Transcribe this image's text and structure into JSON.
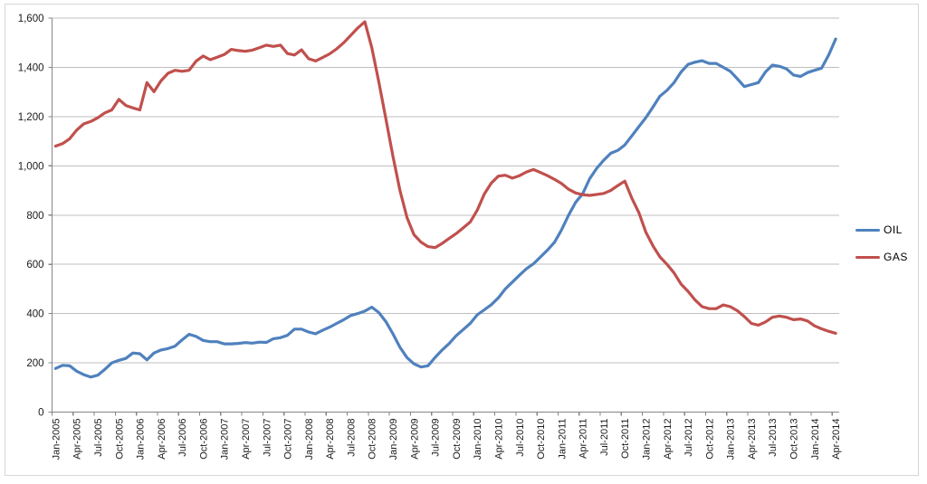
{
  "chart_data": {
    "type": "line",
    "title": "",
    "xlabel": "",
    "ylabel": "",
    "x_start": "Jan-2005",
    "x_end": "Apr-2014",
    "x_frequency": "monthly",
    "x_tick_labels": [
      "Jan-2005",
      "Apr-2005",
      "Jul-2005",
      "Oct-2005",
      "Jan-2006",
      "Apr-2006",
      "Jul-2006",
      "Oct-2006",
      "Jan-2007",
      "Apr-2007",
      "Jul-2007",
      "Oct-2007",
      "Jan-2008",
      "Apr-2008",
      "Jul-2008",
      "Oct-2008",
      "Jan-2009",
      "Apr-2009",
      "Jul-2009",
      "Oct-2009",
      "Jan-2010",
      "Apr-2010",
      "Jul-2010",
      "Oct-2010",
      "Jan-2011",
      "Apr-2011",
      "Jul-2011",
      "Oct-2011",
      "Jan-2012",
      "Apr-2012",
      "Jul-2012",
      "Oct-2012",
      "Jan-2013",
      "Apr-2013",
      "Jul-2013",
      "Oct-2013",
      "Jan-2014",
      "Apr-2014"
    ],
    "y_tick_labels": [
      "0",
      "200",
      "400",
      "600",
      "800",
      "1,000",
      "1,200",
      "1,400",
      "1,600"
    ],
    "ylim": [
      0,
      1600
    ],
    "y_step": 200,
    "grid": "horizontal",
    "legend_position": "right",
    "series": [
      {
        "name": "OIL",
        "color": "#4f81bd",
        "values": [
          177,
          190,
          188,
          166,
          152,
          142,
          150,
          173,
          200,
          210,
          218,
          240,
          237,
          212,
          240,
          252,
          258,
          268,
          293,
          316,
          307,
          291,
          286,
          286,
          277,
          277,
          279,
          282,
          280,
          284,
          283,
          298,
          302,
          312,
          337,
          337,
          325,
          318,
          332,
          345,
          360,
          375,
          392,
          400,
          410,
          426,
          404,
          367,
          318,
          263,
          221,
          196,
          183,
          188,
          222,
          252,
          278,
          310,
          335,
          360,
          395,
          415,
          436,
          464,
          500,
          528,
          556,
          582,
          602,
          630,
          658,
          690,
          740,
          800,
          852,
          886,
          948,
          990,
          1023,
          1051,
          1063,
          1085,
          1122,
          1159,
          1196,
          1239,
          1283,
          1307,
          1338,
          1381,
          1412,
          1421,
          1427,
          1416,
          1416,
          1400,
          1384,
          1354,
          1322,
          1330,
          1338,
          1381,
          1409,
          1404,
          1394,
          1369,
          1363,
          1379,
          1388,
          1397,
          1450,
          1515
        ]
      },
      {
        "name": "GAS",
        "color": "#c0504d",
        "values": [
          1080,
          1090,
          1110,
          1145,
          1170,
          1180,
          1195,
          1215,
          1227,
          1270,
          1245,
          1235,
          1227,
          1338,
          1301,
          1345,
          1376,
          1388,
          1384,
          1388,
          1425,
          1446,
          1431,
          1441,
          1452,
          1473,
          1468,
          1465,
          1470,
          1480,
          1490,
          1485,
          1490,
          1456,
          1450,
          1471,
          1435,
          1426,
          1440,
          1455,
          1475,
          1500,
          1530,
          1560,
          1585,
          1480,
          1340,
          1190,
          1040,
          900,
          790,
          720,
          690,
          672,
          668,
          685,
          705,
          725,
          748,
          772,
          820,
          885,
          930,
          958,
          962,
          950,
          960,
          975,
          985,
          973,
          960,
          945,
          928,
          905,
          890,
          883,
          880,
          884,
          888,
          900,
          920,
          938,
          868,
          810,
          730,
          675,
          630,
          600,
          565,
          520,
          490,
          455,
          428,
          420,
          420,
          435,
          428,
          412,
          388,
          360,
          353,
          366,
          385,
          390,
          385,
          375,
          378,
          370,
          350,
          338,
          328,
          320
        ]
      }
    ]
  },
  "legend": {
    "oil_label": "OIL",
    "gas_label": "GAS"
  },
  "style": {
    "gridline_color": "#bfbfbf",
    "axis_color": "#868686",
    "label_color": "#1a1a1a",
    "frame_color": "#d6d6d6"
  }
}
